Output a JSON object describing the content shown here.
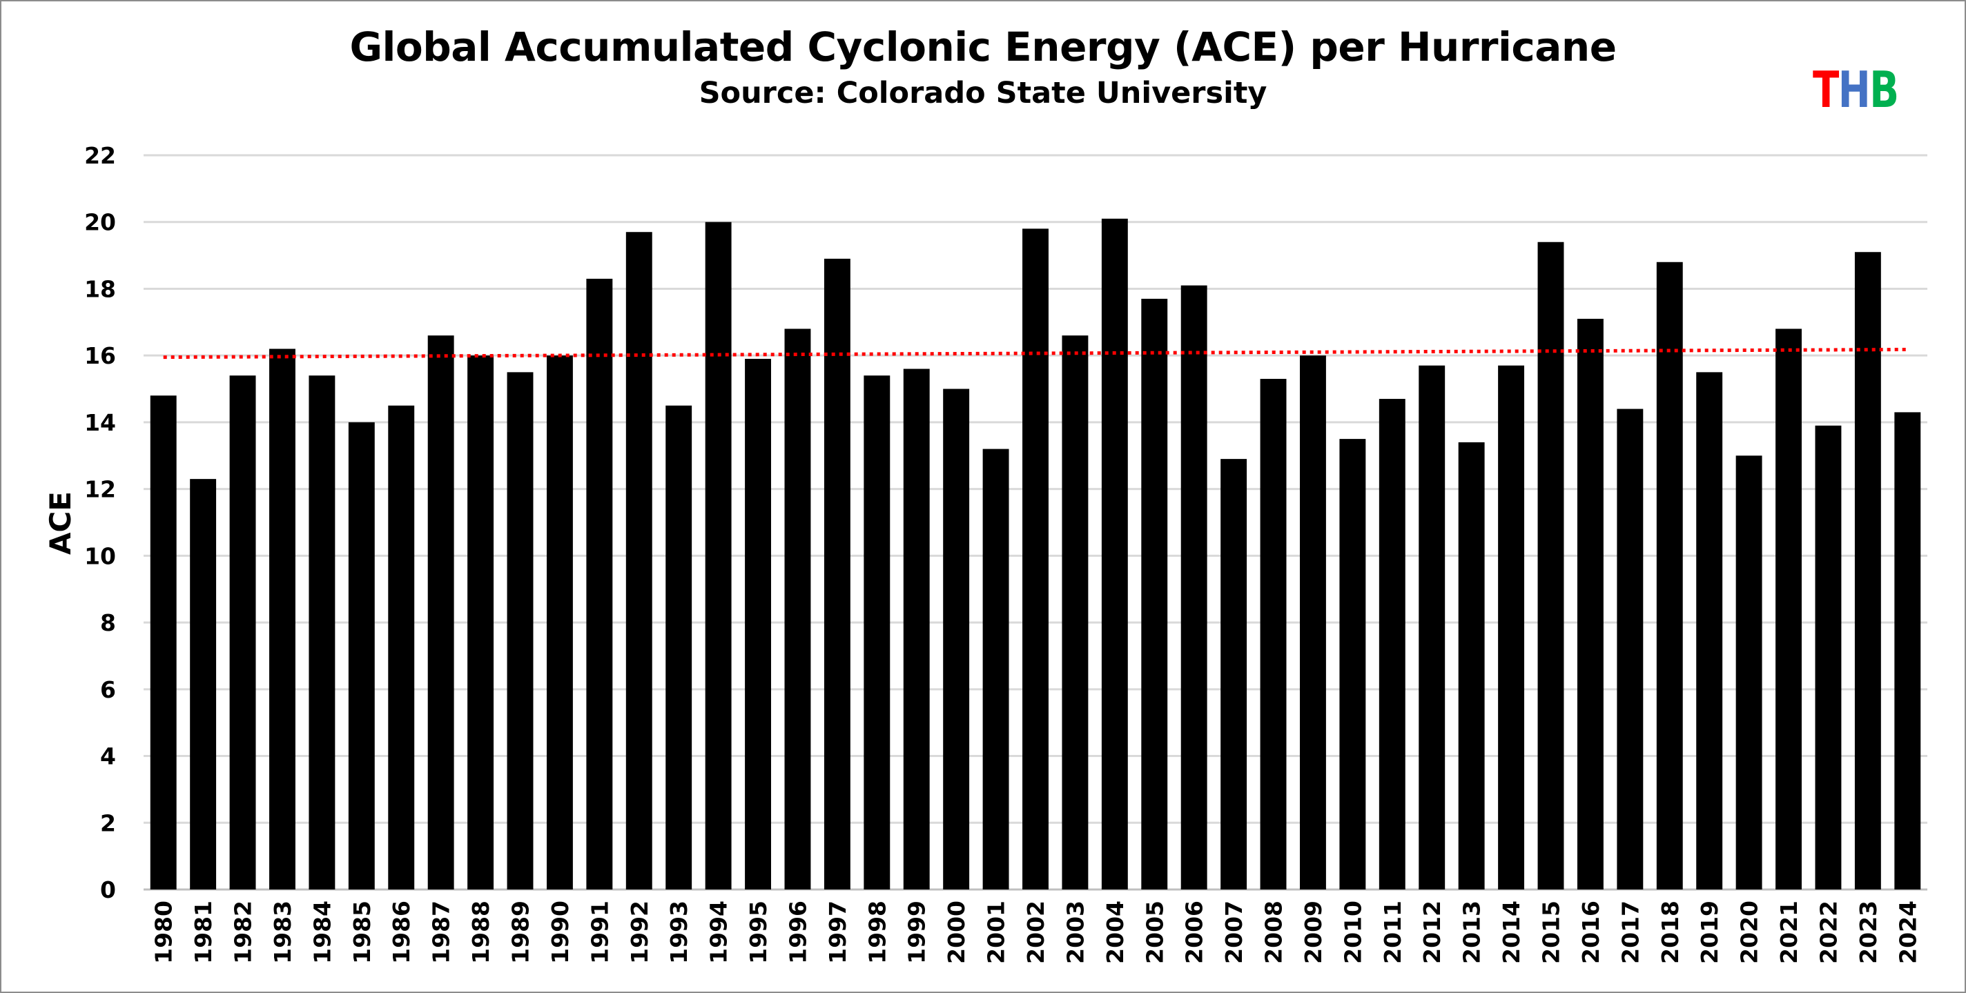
{
  "logo": {
    "letters": [
      "T",
      "H",
      "B"
    ],
    "colors": [
      "#ff0000",
      "#4472c4",
      "#00b050"
    ]
  },
  "chart_data": {
    "type": "bar",
    "title": "Global Accumulated Cyclonic Energy (ACE) per Hurricane",
    "subtitle": "Source: Colorado State University",
    "xlabel": "",
    "ylabel": "ACE",
    "ylim": [
      0,
      22
    ],
    "yticks": [
      0,
      2,
      4,
      6,
      8,
      10,
      12,
      14,
      16,
      18,
      20,
      22
    ],
    "grid": true,
    "bar_color": "#000000",
    "grid_color": "#d9d9d9",
    "categories": [
      "1980",
      "1981",
      "1982",
      "1983",
      "1984",
      "1985",
      "1986",
      "1987",
      "1988",
      "1989",
      "1990",
      "1991",
      "1992",
      "1993",
      "1994",
      "1995",
      "1996",
      "1997",
      "1998",
      "1999",
      "2000",
      "2001",
      "2002",
      "2003",
      "2004",
      "2005",
      "2006",
      "2007",
      "2008",
      "2009",
      "2010",
      "2011",
      "2012",
      "2013",
      "2014",
      "2015",
      "2016",
      "2017",
      "2018",
      "2019",
      "2020",
      "2021",
      "2022",
      "2023",
      "2024"
    ],
    "values": [
      14.8,
      12.3,
      15.4,
      16.2,
      15.4,
      14.0,
      14.5,
      16.6,
      16.0,
      15.5,
      16.0,
      18.3,
      19.7,
      14.5,
      20.0,
      15.9,
      16.8,
      18.9,
      15.4,
      15.6,
      15.0,
      13.2,
      19.8,
      16.6,
      20.1,
      17.7,
      18.1,
      12.9,
      15.3,
      16.0,
      13.5,
      14.7,
      15.7,
      13.4,
      15.7,
      19.4,
      17.1,
      14.4,
      18.8,
      15.5,
      13.0,
      16.8,
      13.9,
      19.1,
      14.3
    ],
    "trendline": {
      "name": "Linear trend",
      "style": "dotted",
      "color": "#ff0000",
      "start_value": 15.95,
      "end_value": 16.18
    }
  }
}
